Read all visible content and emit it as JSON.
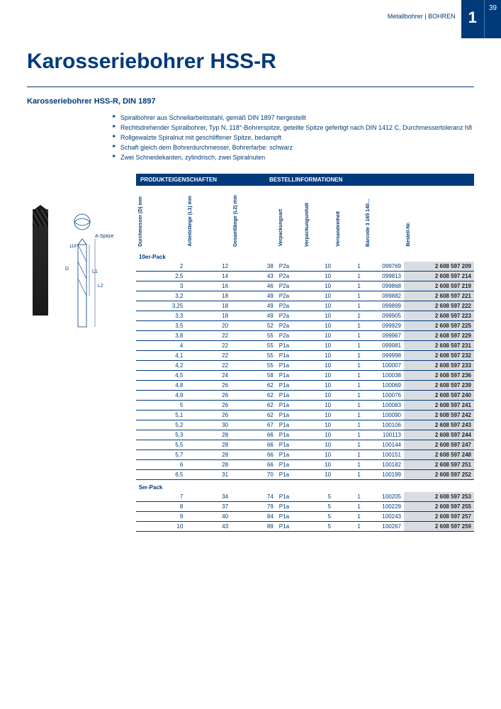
{
  "page": {
    "breadcrumb": "Metallbohrer | BOHREN",
    "chapter_number": "1",
    "page_number": "39"
  },
  "title": "Karosseriebohrer HSS-R",
  "subtitle": "Karosseriebohrer HSS-R, DIN 1897",
  "features": [
    "Spiralbohrer aus Schnellarbeitsstahl, gemäß DIN 1897 hergestellt",
    "Rechtsdrehender Spiralbohrer, Typ N, 118°-Bohrerspitze, geteilte Spitze gefertigt nach DIN 1412 C, Durchmessertoleranz h8",
    "Rollgewalzte Spiralnut mit geschliffener Spitze, bedampft",
    "Schaft gleich dem Bohrerdurchmesser, Bohrerfarbe: schwarz",
    "Zwei Schneidekanten, zylindrisch, zwei Spiralnuten"
  ],
  "diagram_labels": {
    "a_spitze": "A-Spitze",
    "angle": "118°",
    "d": "D",
    "l1": "L1",
    "l2": "L2"
  },
  "table": {
    "group_prod": "PRODUKTEIGENSCHAFTEN",
    "group_order": "BESTELLINFORMATIONEN",
    "columns": {
      "d": "Durchmesser (D)\nmm",
      "l1": "Arbeitslänge (L1)\nmm",
      "l2": "Gesamtlänge (L2)\nmm",
      "vpa": "Verpackungsart",
      "vpi": "Verpackungsinhalt",
      "ve": "Versandeinheit",
      "bc": "Barcode\n3 165 140…",
      "ord": "Bestell-Nr."
    },
    "sections": [
      {
        "label": "10er-Pack",
        "rows": [
          {
            "d": "2",
            "l1": "12",
            "l2": "38",
            "vpa": "P2a",
            "vpi": "10",
            "ve": "1",
            "bc": "099769",
            "ord": "2 608 597 209"
          },
          {
            "d": "2,5",
            "l1": "14",
            "l2": "43",
            "vpa": "P2a",
            "vpi": "10",
            "ve": "1",
            "bc": "099813",
            "ord": "2 608 597 214"
          },
          {
            "d": "3",
            "l1": "16",
            "l2": "46",
            "vpa": "P2a",
            "vpi": "10",
            "ve": "1",
            "bc": "099868",
            "ord": "2 608 597 219"
          },
          {
            "d": "3,2",
            "l1": "18",
            "l2": "49",
            "vpa": "P2a",
            "vpi": "10",
            "ve": "1",
            "bc": "099882",
            "ord": "2 608 597 221"
          },
          {
            "d": "3,25",
            "l1": "18",
            "l2": "49",
            "vpa": "P2a",
            "vpi": "10",
            "ve": "1",
            "bc": "099899",
            "ord": "2 608 597 222"
          },
          {
            "d": "3,3",
            "l1": "18",
            "l2": "49",
            "vpa": "P2a",
            "vpi": "10",
            "ve": "1",
            "bc": "099905",
            "ord": "2 608 597 223"
          },
          {
            "d": "3,5",
            "l1": "20",
            "l2": "52",
            "vpa": "P2a",
            "vpi": "10",
            "ve": "1",
            "bc": "099929",
            "ord": "2 608 597 225"
          },
          {
            "d": "3,8",
            "l1": "22",
            "l2": "55",
            "vpa": "P2a",
            "vpi": "10",
            "ve": "1",
            "bc": "099967",
            "ord": "2 608 597 229"
          },
          {
            "d": "4",
            "l1": "22",
            "l2": "55",
            "vpa": "P1a",
            "vpi": "10",
            "ve": "1",
            "bc": "099981",
            "ord": "2 608 597 231"
          },
          {
            "d": "4,1",
            "l1": "22",
            "l2": "55",
            "vpa": "P1a",
            "vpi": "10",
            "ve": "1",
            "bc": "099998",
            "ord": "2 608 597 232"
          },
          {
            "d": "4,2",
            "l1": "22",
            "l2": "55",
            "vpa": "P1a",
            "vpi": "10",
            "ve": "1",
            "bc": "100007",
            "ord": "2 608 597 233"
          },
          {
            "d": "4,5",
            "l1": "24",
            "l2": "58",
            "vpa": "P1a",
            "vpi": "10",
            "ve": "1",
            "bc": "100038",
            "ord": "2 608 597 236"
          },
          {
            "d": "4,8",
            "l1": "26",
            "l2": "62",
            "vpa": "P1a",
            "vpi": "10",
            "ve": "1",
            "bc": "100069",
            "ord": "2 608 597 239"
          },
          {
            "d": "4,9",
            "l1": "26",
            "l2": "62",
            "vpa": "P1a",
            "vpi": "10",
            "ve": "1",
            "bc": "100076",
            "ord": "2 608 597 240"
          },
          {
            "d": "5",
            "l1": "26",
            "l2": "62",
            "vpa": "P1a",
            "vpi": "10",
            "ve": "1",
            "bc": "100083",
            "ord": "2 608 597 241"
          },
          {
            "d": "5,1",
            "l1": "26",
            "l2": "62",
            "vpa": "P1a",
            "vpi": "10",
            "ve": "1",
            "bc": "100090",
            "ord": "2 608 597 242"
          },
          {
            "d": "5,2",
            "l1": "30",
            "l2": "67",
            "vpa": "P1a",
            "vpi": "10",
            "ve": "1",
            "bc": "100106",
            "ord": "2 608 597 243"
          },
          {
            "d": "5,3",
            "l1": "28",
            "l2": "66",
            "vpa": "P1a",
            "vpi": "10",
            "ve": "1",
            "bc": "100113",
            "ord": "2 608 597 244"
          },
          {
            "d": "5,5",
            "l1": "28",
            "l2": "66",
            "vpa": "P1a",
            "vpi": "10",
            "ve": "1",
            "bc": "100144",
            "ord": "2 608 597 247"
          },
          {
            "d": "5,7",
            "l1": "28",
            "l2": "66",
            "vpa": "P1a",
            "vpi": "10",
            "ve": "1",
            "bc": "100151",
            "ord": "2 608 597 248"
          },
          {
            "d": "6",
            "l1": "28",
            "l2": "66",
            "vpa": "P1a",
            "vpi": "10",
            "ve": "1",
            "bc": "100182",
            "ord": "2 608 597 251"
          },
          {
            "d": "6,5",
            "l1": "31",
            "l2": "70",
            "vpa": "P1a",
            "vpi": "10",
            "ve": "1",
            "bc": "100199",
            "ord": "2 608 597 252"
          }
        ]
      },
      {
        "label": "5er-Pack",
        "rows": [
          {
            "d": "7",
            "l1": "34",
            "l2": "74",
            "vpa": "P1a",
            "vpi": "5",
            "ve": "1",
            "bc": "100205",
            "ord": "2 608 597 253"
          },
          {
            "d": "8",
            "l1": "37",
            "l2": "79",
            "vpa": "P1a",
            "vpi": "5",
            "ve": "1",
            "bc": "100229",
            "ord": "2 608 597 255"
          },
          {
            "d": "9",
            "l1": "40",
            "l2": "84",
            "vpa": "P1a",
            "vpi": "5",
            "ve": "1",
            "bc": "100243",
            "ord": "2 608 597 257"
          },
          {
            "d": "10",
            "l1": "43",
            "l2": "89",
            "vpa": "P1a",
            "vpi": "5",
            "ve": "1",
            "bc": "100267",
            "ord": "2 608 597 259"
          }
        ]
      }
    ]
  },
  "colors": {
    "brand": "#003a7a",
    "order_bg": "#d9dde2",
    "text": "#333333"
  }
}
